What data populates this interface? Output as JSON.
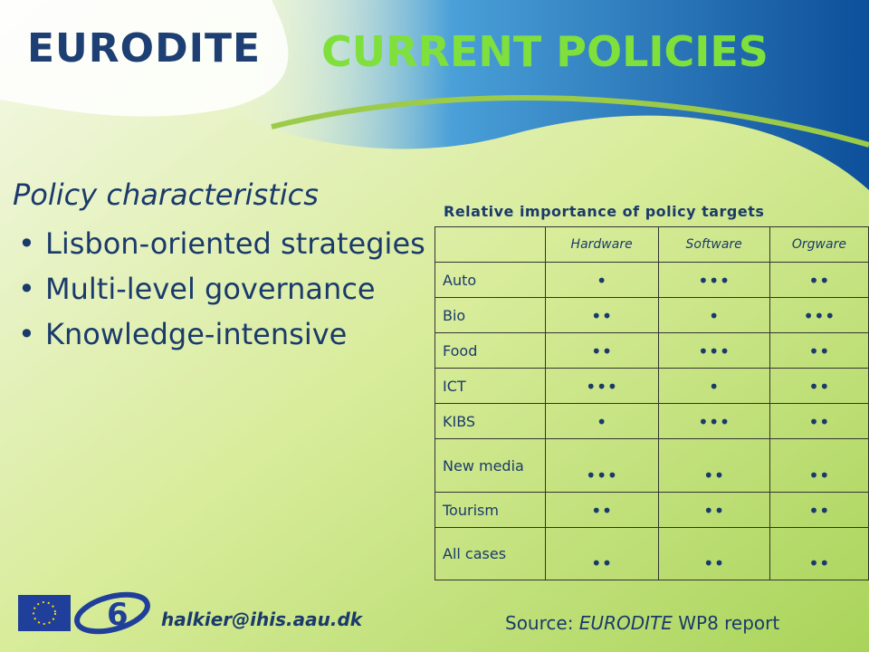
{
  "logo": {
    "text": "EURODITE"
  },
  "header": {
    "title": "CURRENT POLICIES"
  },
  "left": {
    "heading": "Policy characteristics",
    "bullets": [
      "Lisbon-oriented strategies",
      "Multi-level governance",
      "Knowledge-intensive"
    ]
  },
  "table": {
    "title": "Relative importance of policy targets",
    "columns": [
      "Hardware",
      "Software",
      "Orgware"
    ],
    "rows": [
      [
        "Auto",
        "•",
        "•••",
        "••"
      ],
      [
        "Bio",
        "••",
        "•",
        "•••"
      ],
      [
        "Food",
        "••",
        "•••",
        "••"
      ],
      [
        "ICT",
        "•••",
        "•",
        "••"
      ],
      [
        "KIBS",
        "•",
        "•••",
        "••"
      ],
      [
        "New media",
        "•••",
        "••",
        "••"
      ],
      [
        "Tourism",
        "••",
        "••",
        "••"
      ],
      [
        "All cases",
        "••",
        "••",
        "••"
      ]
    ]
  },
  "footer": {
    "email": "halkier@ihis.aau.dk",
    "source": {
      "prefix": "Source:",
      "name": "EURODITE",
      "suffix": "WP8 report"
    }
  }
}
